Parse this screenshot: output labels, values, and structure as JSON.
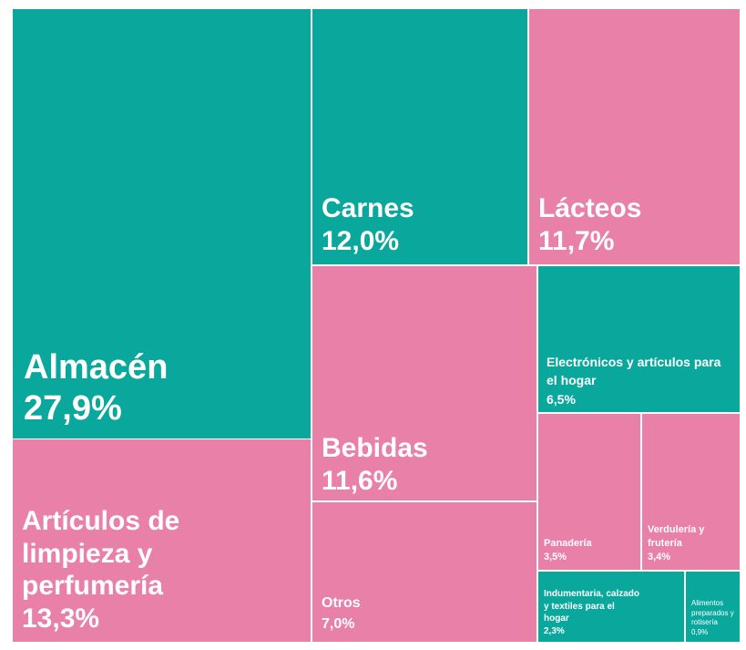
{
  "chart_data": {
    "type": "treemap",
    "title": "",
    "colors": {
      "teal": "#0aa89c",
      "pink": "#e880a8",
      "border": "#ffffff"
    },
    "items": [
      {
        "name": "Almacén",
        "value_label": "27,9%",
        "value": 27.9,
        "color": "teal"
      },
      {
        "name": "Artículos de limpieza y perfumería",
        "value_label": "13,3%",
        "value": 13.3,
        "color": "pink"
      },
      {
        "name": "Carnes",
        "value_label": "12,0%",
        "value": 12.0,
        "color": "teal"
      },
      {
        "name": "Lácteos",
        "value_label": "11,7%",
        "value": 11.7,
        "color": "pink"
      },
      {
        "name": "Bebidas",
        "value_label": "11,6%",
        "value": 11.6,
        "color": "pink"
      },
      {
        "name": "Otros",
        "value_label": "7,0%",
        "value": 7.0,
        "color": "pink"
      },
      {
        "name": "Electrónicos y artículos para el hogar",
        "value_label": "6,5%",
        "value": 6.5,
        "color": "teal"
      },
      {
        "name": "Panadería",
        "value_label": "3,5%",
        "value": 3.5,
        "color": "pink"
      },
      {
        "name": "Verdulería y frutería",
        "value_label": "3,4%",
        "value": 3.4,
        "color": "pink"
      },
      {
        "name": "Indumentaria, calzado y textiles para el hogar",
        "value_label": "2,3%",
        "value": 2.3,
        "color": "teal"
      },
      {
        "name": "Alimentos preparados y rotisería",
        "value_label": "0,9%",
        "value": 0.9,
        "color": "teal"
      }
    ]
  }
}
